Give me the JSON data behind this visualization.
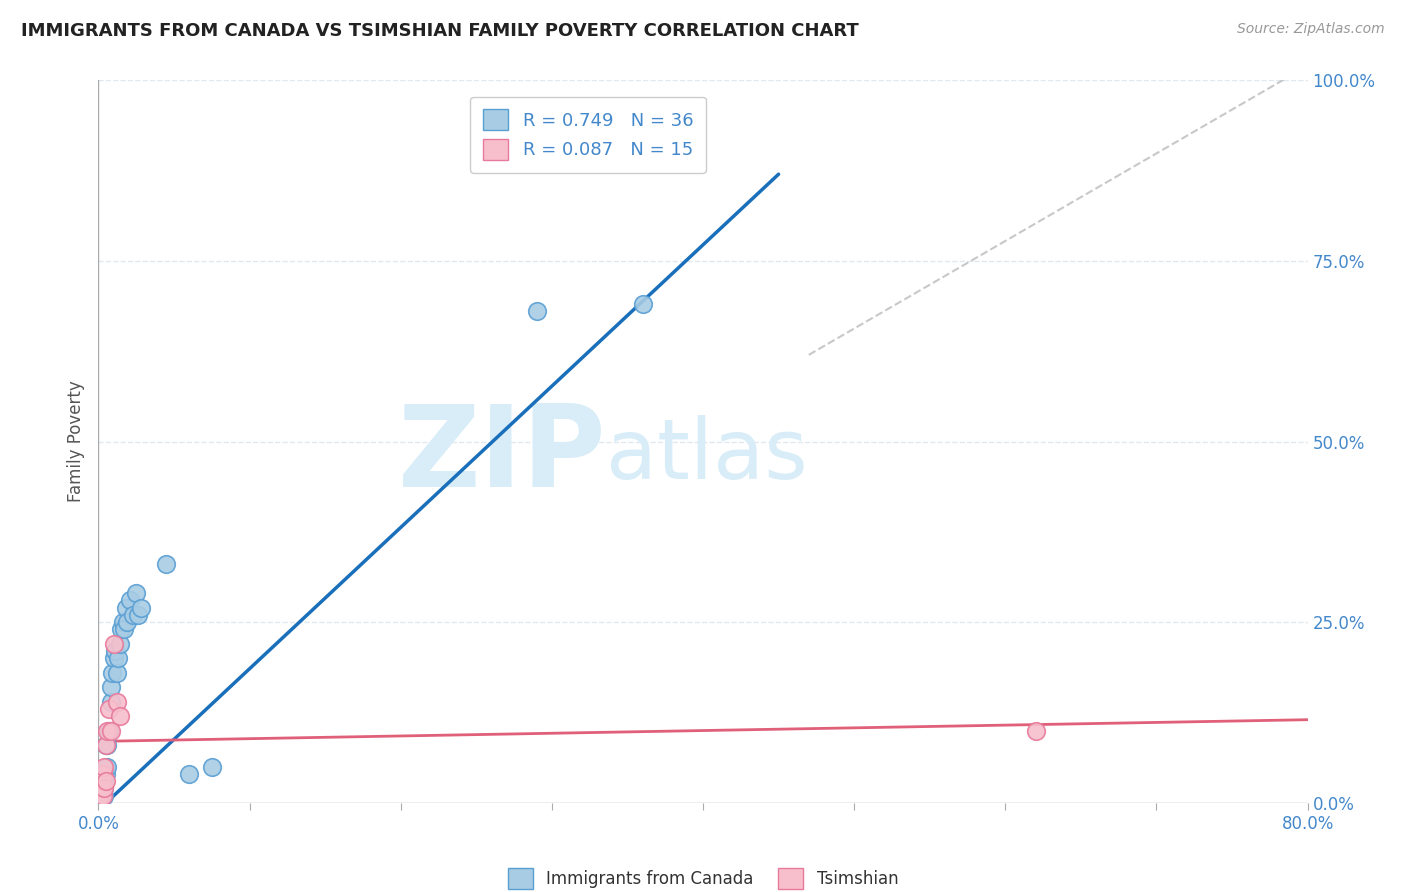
{
  "title": "IMMIGRANTS FROM CANADA VS TSIMSHIAN FAMILY POVERTY CORRELATION CHART",
  "source": "Source: ZipAtlas.com",
  "ylabel": "Family Poverty",
  "legend_label1": "Immigrants from Canada",
  "legend_label2": "Tsimshian",
  "R1": 0.749,
  "N1": 36,
  "R2": 0.087,
  "N2": 15,
  "color_blue": "#a8cce4",
  "color_blue_edge": "#5a9fd4",
  "color_blue_line": "#1a6fba",
  "color_pink": "#f7bfcc",
  "color_pink_edge": "#e8799a",
  "color_pink_line": "#e0607a",
  "color_gray_dashed": "#bbbbbb",
  "watermark_zip": "ZIP",
  "watermark_atlas": "atlas",
  "watermark_color": "#d8edf8",
  "blue_points": [
    [
      0.001,
      0.02
    ],
    [
      0.002,
      0.01
    ],
    [
      0.002,
      0.03
    ],
    [
      0.003,
      0.01
    ],
    [
      0.003,
      0.02
    ],
    [
      0.004,
      0.01
    ],
    [
      0.004,
      0.02
    ],
    [
      0.004,
      0.03
    ],
    [
      0.005,
      0.04
    ],
    [
      0.005,
      0.08
    ],
    [
      0.006,
      0.05
    ],
    [
      0.006,
      0.08
    ],
    [
      0.007,
      0.1
    ],
    [
      0.008,
      0.14
    ],
    [
      0.008,
      0.16
    ],
    [
      0.009,
      0.18
    ],
    [
      0.01,
      0.2
    ],
    [
      0.011,
      0.21
    ],
    [
      0.012,
      0.18
    ],
    [
      0.013,
      0.2
    ],
    [
      0.014,
      0.22
    ],
    [
      0.015,
      0.24
    ],
    [
      0.016,
      0.25
    ],
    [
      0.017,
      0.24
    ],
    [
      0.018,
      0.27
    ],
    [
      0.019,
      0.25
    ],
    [
      0.021,
      0.28
    ],
    [
      0.023,
      0.26
    ],
    [
      0.025,
      0.29
    ],
    [
      0.026,
      0.26
    ],
    [
      0.028,
      0.27
    ],
    [
      0.045,
      0.33
    ],
    [
      0.06,
      0.04
    ],
    [
      0.075,
      0.05
    ],
    [
      0.29,
      0.68
    ],
    [
      0.36,
      0.69
    ]
  ],
  "pink_points": [
    [
      0.001,
      0.01
    ],
    [
      0.002,
      0.02
    ],
    [
      0.003,
      0.01
    ],
    [
      0.003,
      0.04
    ],
    [
      0.004,
      0.02
    ],
    [
      0.004,
      0.05
    ],
    [
      0.005,
      0.03
    ],
    [
      0.005,
      0.08
    ],
    [
      0.006,
      0.1
    ],
    [
      0.007,
      0.13
    ],
    [
      0.008,
      0.1
    ],
    [
      0.01,
      0.22
    ],
    [
      0.012,
      0.14
    ],
    [
      0.014,
      0.12
    ],
    [
      0.62,
      0.1
    ]
  ],
  "blue_line": [
    [
      0.0,
      -0.01
    ],
    [
      0.45,
      0.87
    ]
  ],
  "pink_line": [
    [
      0.0,
      0.085
    ],
    [
      0.8,
      0.115
    ]
  ],
  "gray_line": [
    [
      0.47,
      0.62
    ],
    [
      0.8,
      1.02
    ]
  ],
  "xlim": [
    0.0,
    0.8
  ],
  "ylim": [
    0.0,
    1.0
  ],
  "xtick_vals": [
    0.0,
    0.1,
    0.2,
    0.3,
    0.4,
    0.5,
    0.6,
    0.7,
    0.8
  ],
  "ytick_vals": [
    0.0,
    0.25,
    0.5,
    0.75,
    1.0
  ],
  "right_axis_labels": [
    "0.0%",
    "25.0%",
    "50.0%",
    "75.0%",
    "100.0%"
  ],
  "grid_color": "#e0e8f0",
  "axis_color": "#aaaaaa",
  "label_color": "#4488cc",
  "title_color": "#222222",
  "source_color": "#999999"
}
